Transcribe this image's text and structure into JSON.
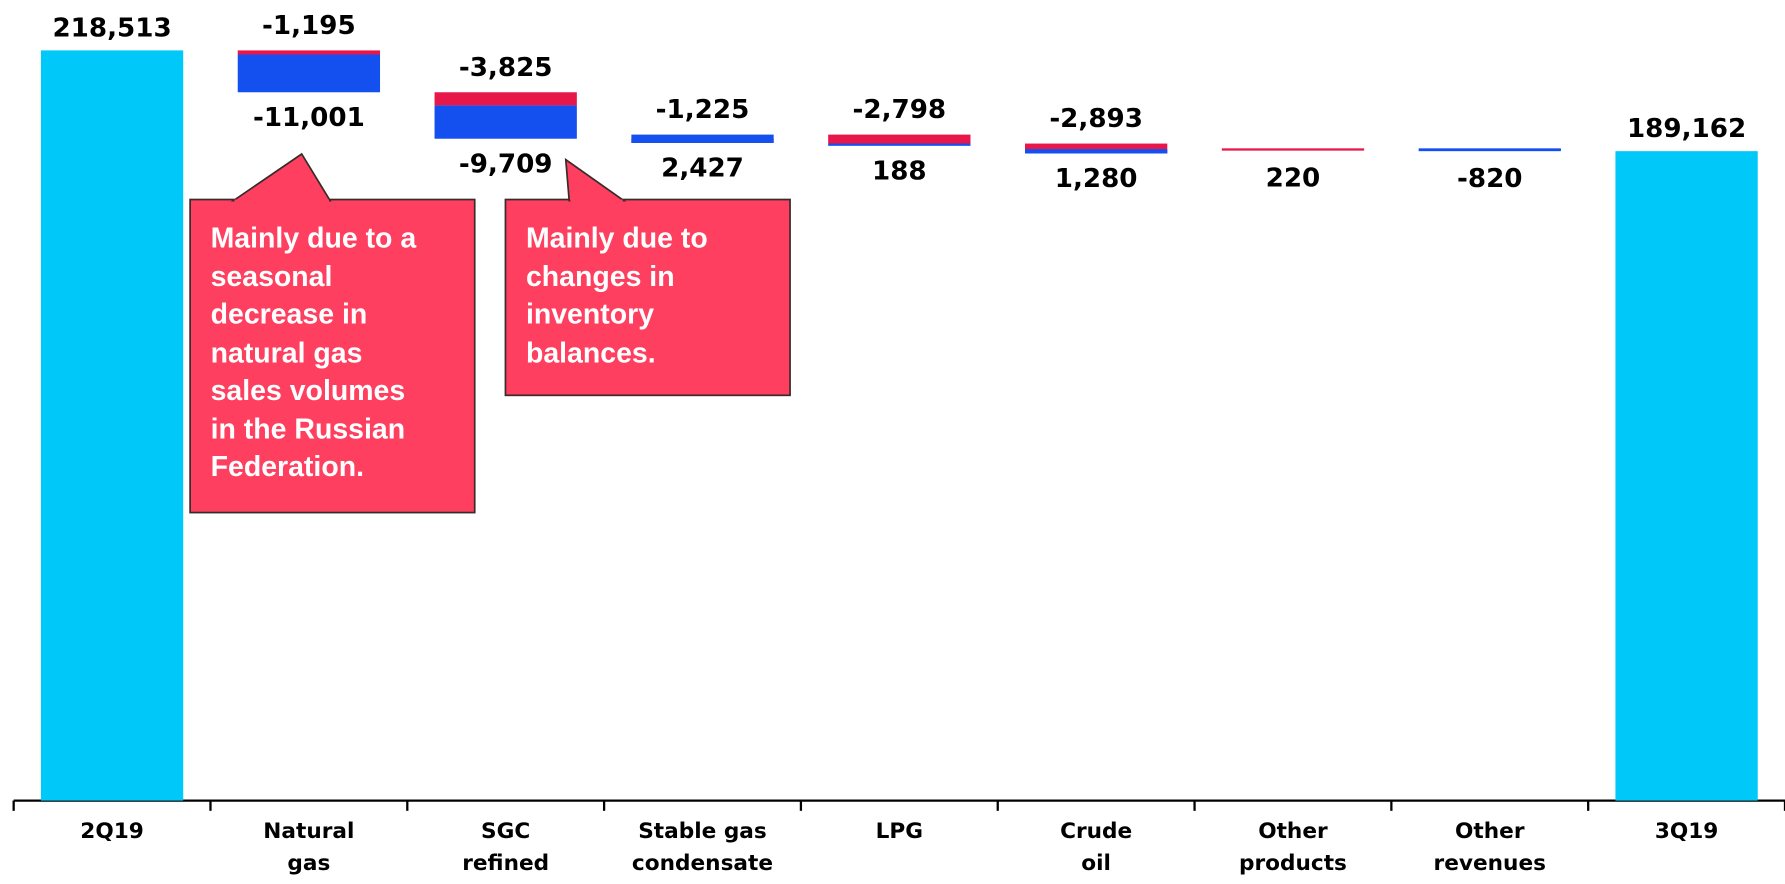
{
  "chart_data": {
    "type": "waterfall",
    "categories": [
      "2Q19",
      "Natural\ngas",
      "SGC\nrefined products",
      "Stable gas\ncondensate",
      "LPG",
      "Crude\noil",
      "Other\nproducts",
      "Other\nrevenues",
      "3Q19"
    ],
    "values": [
      218513,
      null,
      null,
      null,
      null,
      null,
      null,
      null,
      189162
    ],
    "value_labels": [
      "218,513",
      null,
      null,
      null,
      null,
      null,
      null,
      null,
      "189,162"
    ],
    "color": "#00c8f8",
    "series": [
      {
        "color": "#e8174a",
        "values": [
          null,
          -1195,
          -3825,
          -1225,
          -2798,
          -2893,
          220,
          null,
          null
        ],
        "value_labels": [
          null,
          "-1,195",
          "-3,825",
          "-1,225",
          "-2,798",
          "-2,893",
          "220",
          null,
          null
        ]
      },
      {
        "color": "#1450f0",
        "values": [
          null,
          -11001,
          -9709,
          2427,
          188,
          1280,
          null,
          -820,
          null
        ],
        "value_labels": [
          null,
          "-11,001",
          "-9,709",
          "2,427",
          "188",
          "1,280",
          null,
          "-820",
          null
        ]
      }
    ],
    "annotations": [
      {
        "lines": [
          "Mainly due to a",
          "seasonal",
          "decrease in",
          "natural gas",
          "sales volumes",
          "in the Russian",
          "Federation."
        ]
      },
      {
        "lines": [
          "Mainly due to",
          "changes in",
          "inventory",
          "balances."
        ]
      }
    ]
  }
}
